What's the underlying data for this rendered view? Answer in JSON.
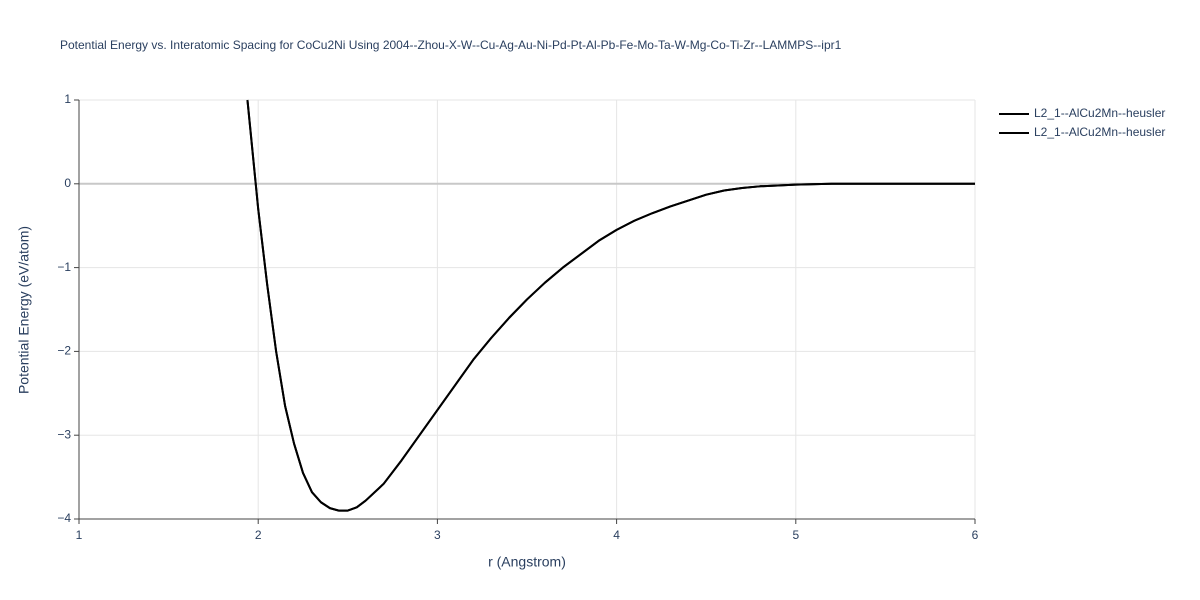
{
  "chart_data": {
    "type": "line",
    "title": "Potential Energy vs. Interatomic Spacing for CoCu2Ni Using 2004--Zhou-X-W--Cu-Ag-Au-Ni-Pd-Pt-Al-Pb-Fe-Mo-Ta-W-Mg-Co-Ti-Zr--LAMMPS--ipr1",
    "x_label": "r (Angstrom)",
    "y_label": "Potential Energy (eV/atom)",
    "x": [
      1.94,
      2.0,
      2.05,
      2.1,
      2.15,
      2.2,
      2.25,
      2.3,
      2.35,
      2.4,
      2.45,
      2.5,
      2.55,
      2.6,
      2.7,
      2.8,
      2.9,
      3.0,
      3.1,
      3.2,
      3.3,
      3.4,
      3.5,
      3.6,
      3.7,
      3.8,
      3.9,
      4.0,
      4.1,
      4.2,
      4.3,
      4.4,
      4.5,
      4.6,
      4.7,
      4.8,
      4.9,
      5.0,
      5.2,
      5.5,
      6.0
    ],
    "series": [
      {
        "name": "L2_1--AlCu2Mn--heusler",
        "color": "#000000",
        "values": [
          1,
          -0.3,
          -1.2,
          -2.0,
          -2.65,
          -3.1,
          -3.45,
          -3.68,
          -3.8,
          -3.87,
          -3.9,
          -3.9,
          -3.86,
          -3.78,
          -3.58,
          -3.3,
          -3.0,
          -2.7,
          -2.4,
          -2.1,
          -1.84,
          -1.6,
          -1.38,
          -1.18,
          -1.0,
          -0.84,
          -0.68,
          -0.55,
          -0.44,
          -0.35,
          -0.27,
          -0.2,
          -0.13,
          -0.08,
          -0.05,
          -0.03,
          -0.02,
          -0.01,
          0,
          0,
          0
        ]
      },
      {
        "name": "L2_1--AlCu2Mn--heusler",
        "color": "#000000",
        "values": [
          1,
          -0.3,
          -1.2,
          -2.0,
          -2.65,
          -3.1,
          -3.45,
          -3.68,
          -3.8,
          -3.87,
          -3.9,
          -3.9,
          -3.86,
          -3.78,
          -3.58,
          -3.3,
          -3.0,
          -2.7,
          -2.4,
          -2.1,
          -1.84,
          -1.6,
          -1.38,
          -1.18,
          -1.0,
          -0.84,
          -0.68,
          -0.55,
          -0.44,
          -0.35,
          -0.27,
          -0.2,
          -0.13,
          -0.08,
          -0.05,
          -0.03,
          -0.02,
          -0.01,
          0,
          0,
          0
        ]
      }
    ],
    "xlim": [
      1,
      6
    ],
    "xticks": [
      1,
      2,
      3,
      4,
      5,
      6
    ],
    "ylim": [
      -4,
      1
    ],
    "yticks": [
      {
        "value": -4,
        "label": "−4"
      },
      {
        "value": -3,
        "label": "−3"
      },
      {
        "value": -2,
        "label": "−2"
      },
      {
        "value": -1,
        "label": "−1"
      },
      0,
      1
    ],
    "grid": true
  }
}
